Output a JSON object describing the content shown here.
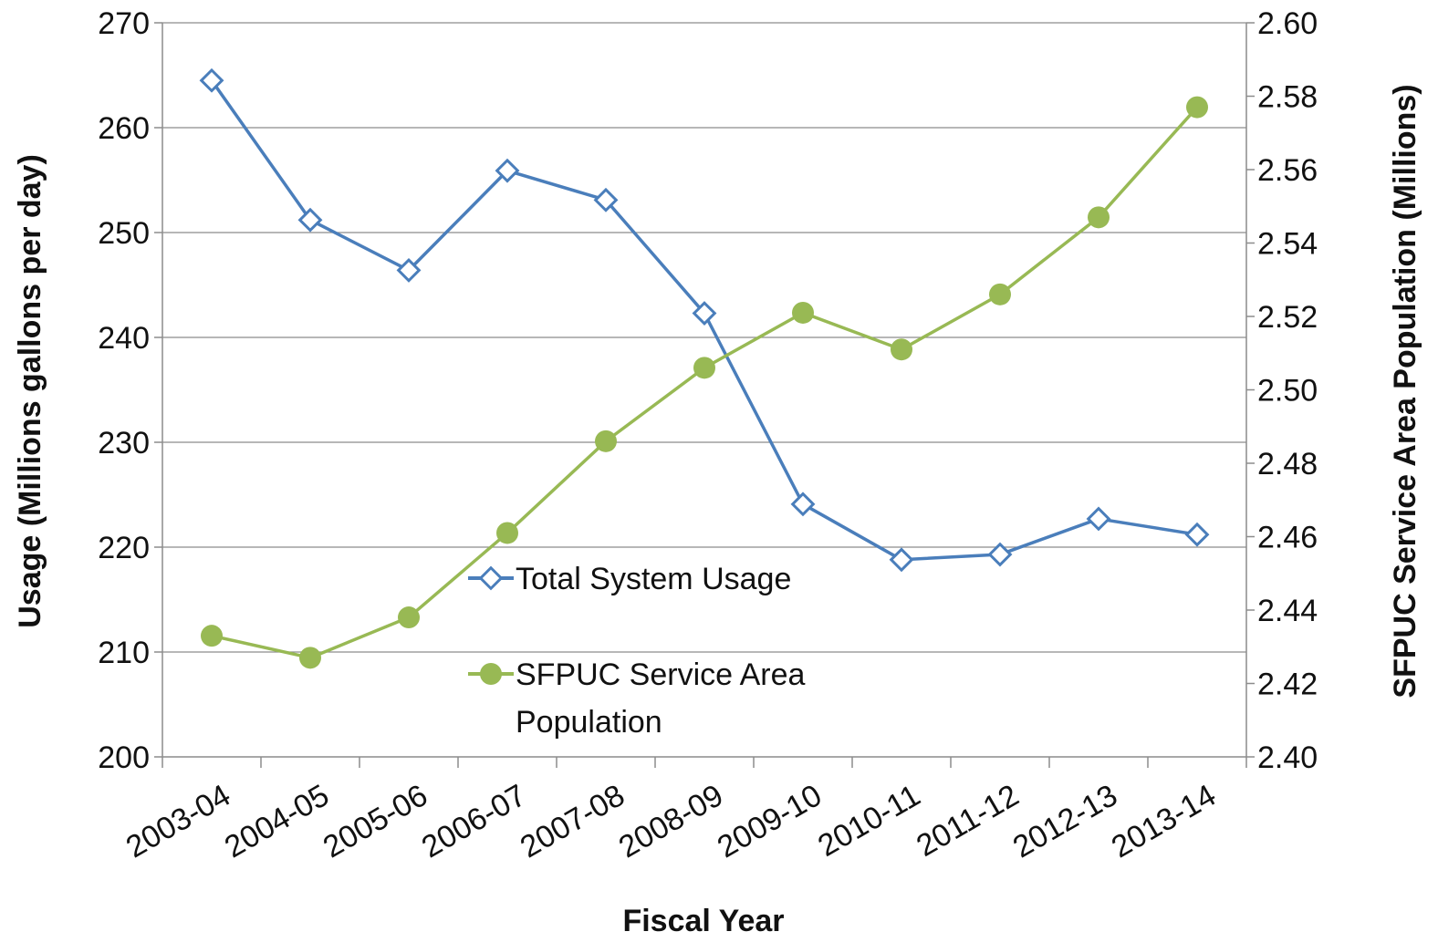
{
  "chart_data": {
    "type": "line",
    "title": "",
    "categories": [
      "2003-04",
      "2004-05",
      "2005-06",
      "2006-07",
      "2007-08",
      "2008-09",
      "2009-10",
      "2010-11",
      "2011-12",
      "2012-13",
      "2013-14"
    ],
    "xlabel": "Fiscal Year",
    "ylabel": "Usage (Millions gallons per day)",
    "y2label": "SFPUC Service Area Population (Millions)",
    "ylim": [
      200,
      270
    ],
    "y2lim": [
      2.4,
      2.6
    ],
    "yticks": [
      "200",
      "210",
      "220",
      "230",
      "240",
      "250",
      "260",
      "270"
    ],
    "y2ticks": [
      "2.40",
      "2.42",
      "2.44",
      "2.46",
      "2.48",
      "2.50",
      "2.52",
      "2.54",
      "2.56",
      "2.58",
      "2.60"
    ],
    "grid": "horizontal",
    "legend_position": "center",
    "series": [
      {
        "name": "Total System Usage",
        "axis": "left",
        "color": "#4a7ebb",
        "marker": "diamond-open",
        "values": [
          264.5,
          251.2,
          246.4,
          255.9,
          253.1,
          242.3,
          224.1,
          218.8,
          219.3,
          222.7,
          221.2
        ]
      },
      {
        "name": "SFPUC Service Area Population",
        "axis": "right",
        "color": "#98b954",
        "marker": "circle-filled",
        "values": [
          2.433,
          2.427,
          2.438,
          2.461,
          2.486,
          2.506,
          2.521,
          2.511,
          2.526,
          2.547,
          2.577
        ]
      }
    ],
    "legend": {
      "usage_label": "Total System Usage",
      "population_label_line1": "SFPUC Service Area",
      "population_label_line2": "Population"
    }
  }
}
